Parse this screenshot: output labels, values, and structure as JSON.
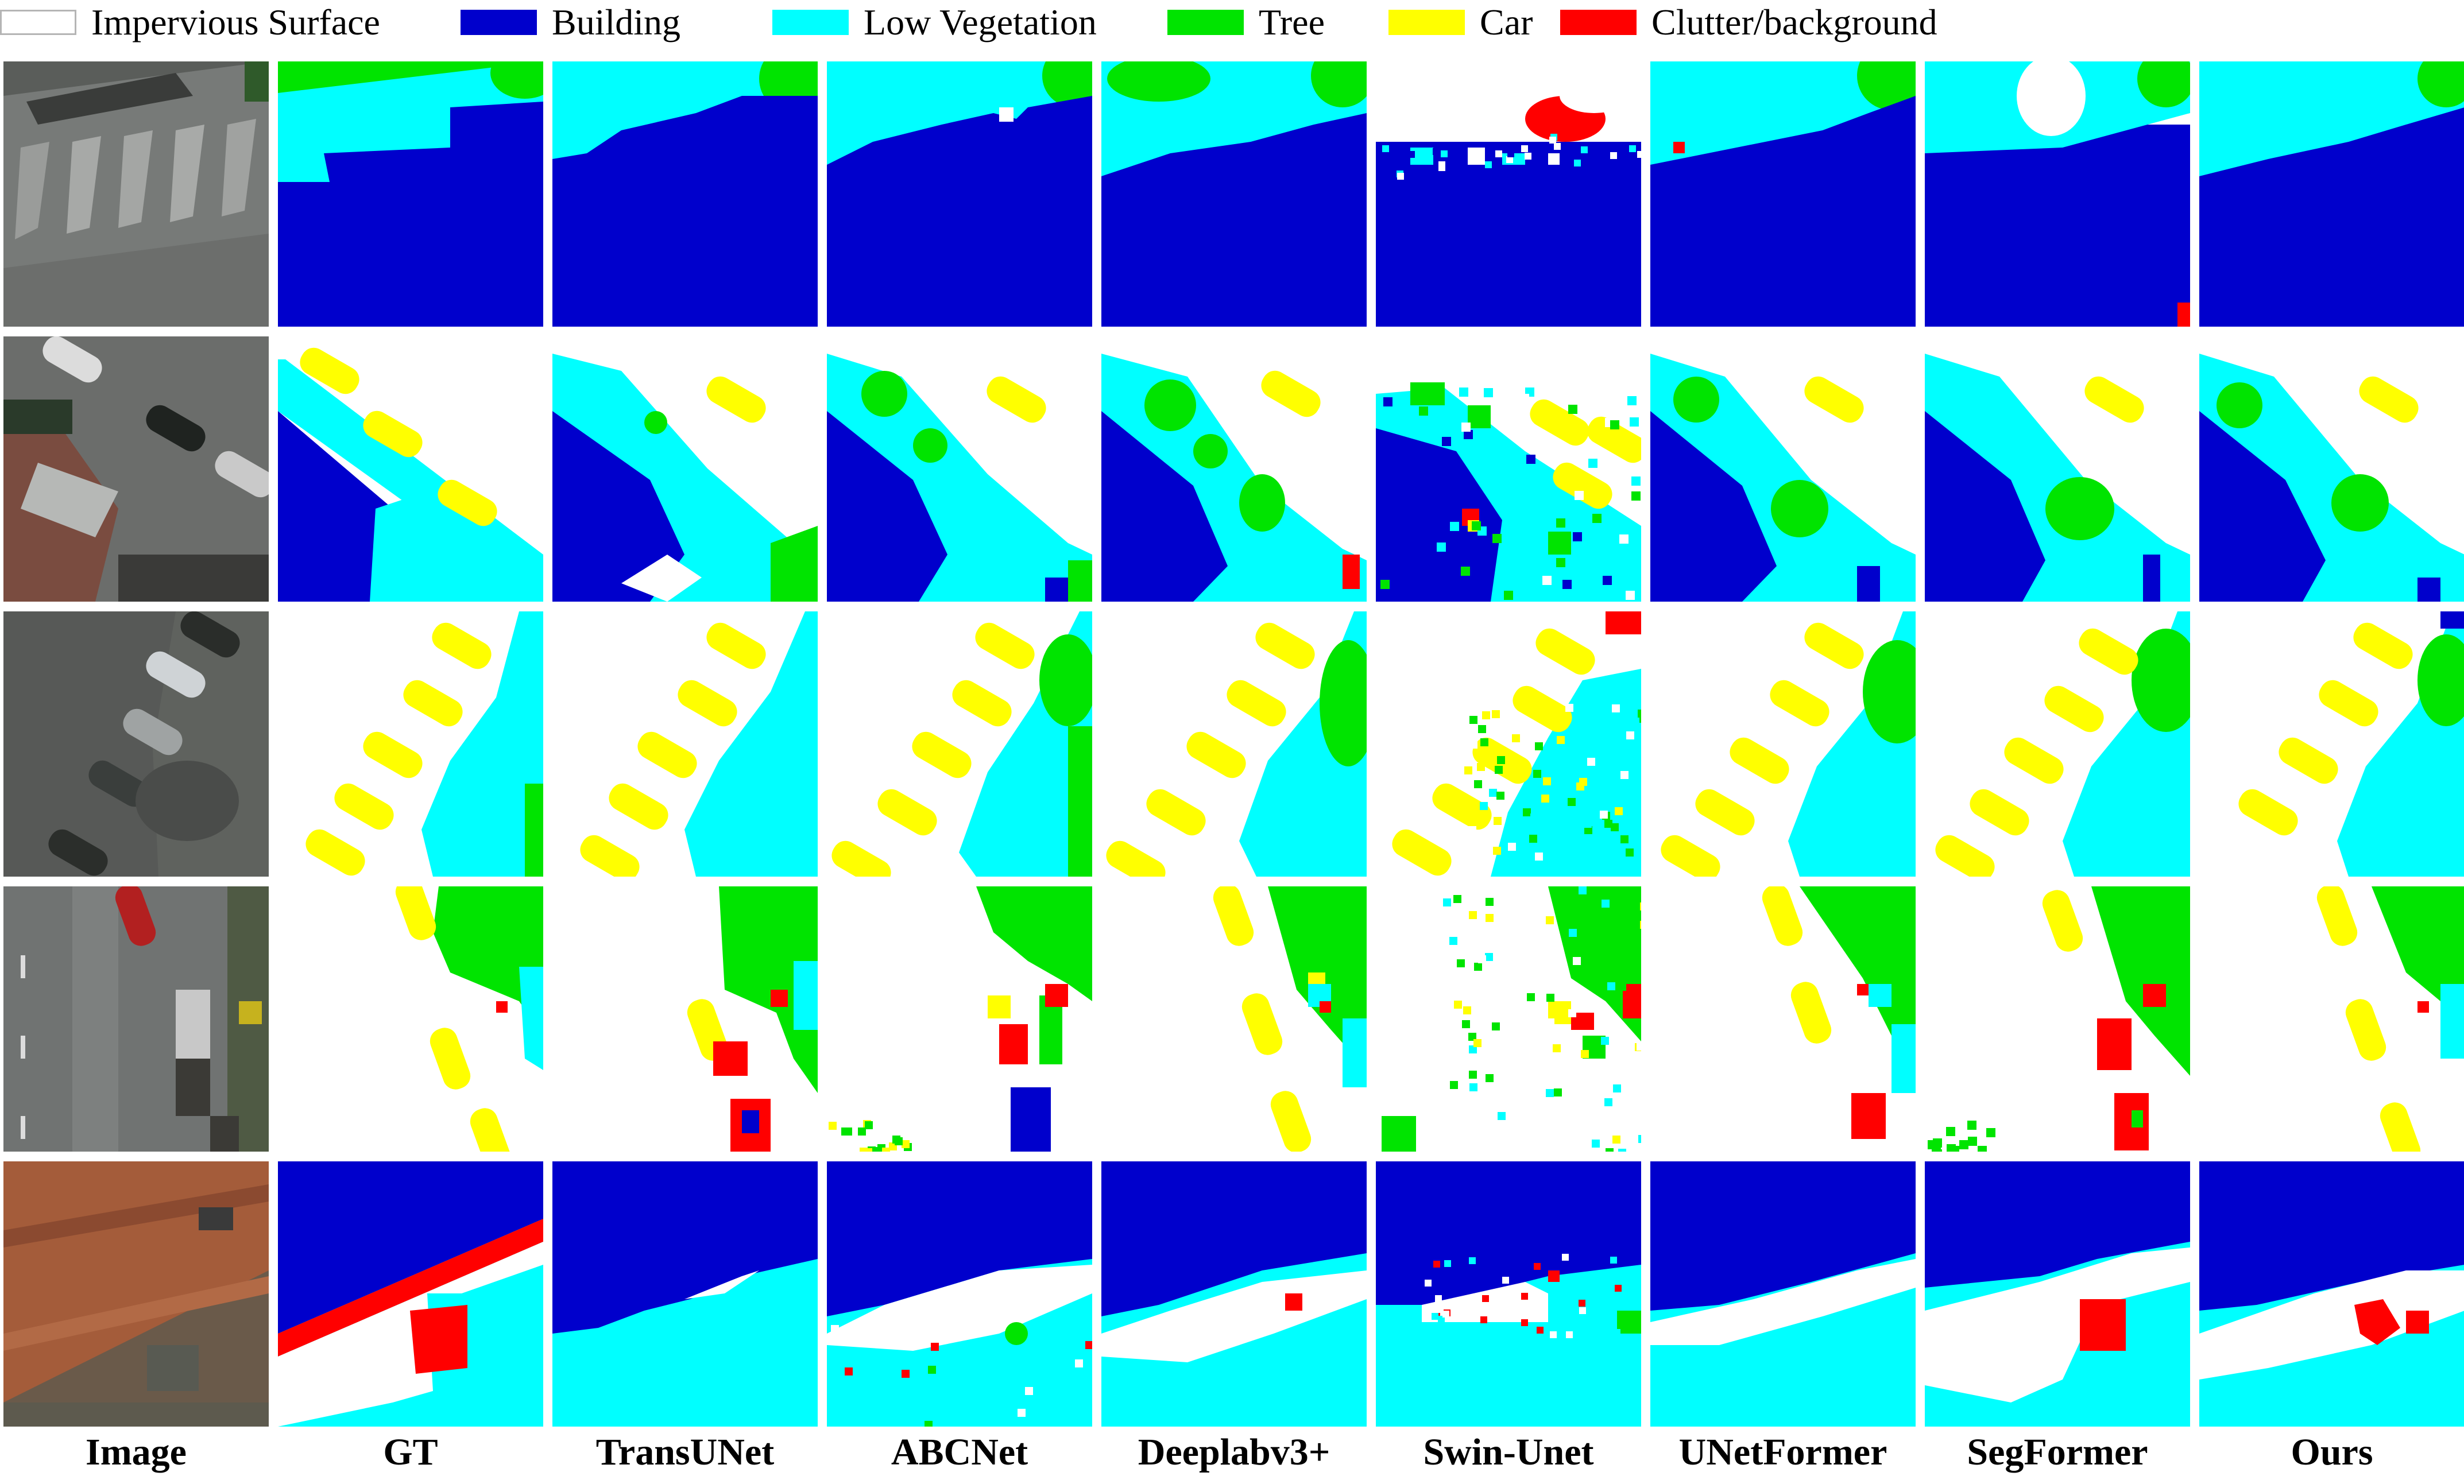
{
  "legend": [
    {
      "label": "Impervious Surface",
      "color": "#ffffff"
    },
    {
      "label": "Building",
      "color": "#0000cc"
    },
    {
      "label": "Low Vegetation",
      "color": "#00ffff"
    },
    {
      "label": "Tree",
      "color": "#00e400"
    },
    {
      "label": "Car",
      "color": "#ffff00"
    },
    {
      "label": "Clutter/background",
      "color": "#ff0000"
    }
  ],
  "columns": [
    "Image",
    "GT",
    "TransUNet",
    "ABCNet",
    "Deeplabv3+",
    "Swin-Unet",
    "UNetFormer",
    "SegFormer",
    "Ours"
  ],
  "rows": 5,
  "colors": {
    "impervious": "#ffffff",
    "building": "#0000cc",
    "low_vegetation": "#00ffff",
    "tree": "#00e400",
    "car": "#ffff00",
    "clutter": "#ff0000"
  }
}
